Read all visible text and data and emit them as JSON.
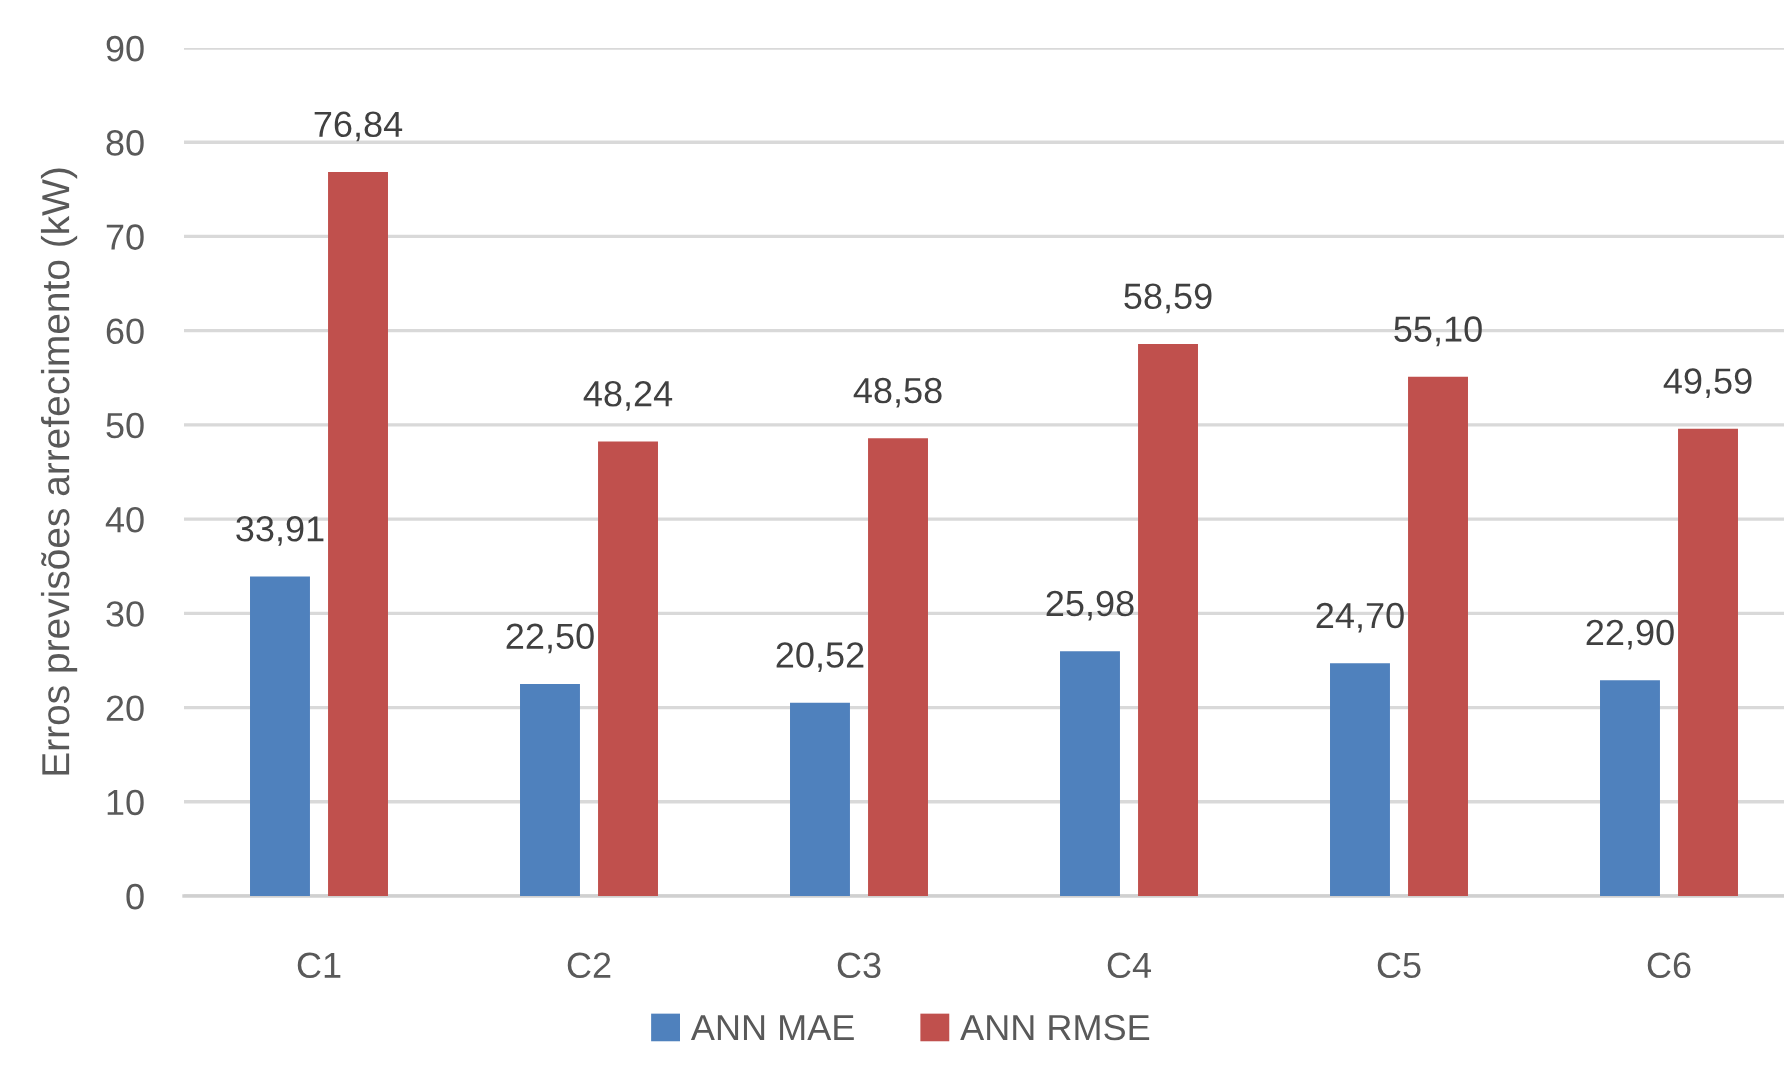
{
  "chart_data": {
    "type": "bar",
    "ylabel": "Erros previsões arrefecimento (kW)",
    "categories": [
      "C1",
      "C2",
      "C3",
      "C4",
      "C5",
      "C6"
    ],
    "series": [
      {
        "name": "ANN MAE",
        "color": "#4f81bd",
        "values": [
          33.91,
          22.5,
          20.52,
          25.98,
          24.7,
          22.9
        ],
        "value_labels": [
          "33,91",
          "22,50",
          "20,52",
          "25,98",
          "24,70",
          "22,90"
        ]
      },
      {
        "name": "ANN RMSE",
        "color": "#c0504d",
        "values": [
          76.84,
          48.24,
          48.58,
          58.59,
          55.1,
          49.59
        ],
        "value_labels": [
          "76,84",
          "48,24",
          "48,58",
          "58,59",
          "55,10",
          "49,59"
        ]
      }
    ],
    "ylim": [
      0,
      90
    ],
    "yticks": [
      0,
      10,
      20,
      30,
      40,
      50,
      60,
      70,
      80,
      90
    ],
    "grid": "y",
    "legend": "bottom"
  }
}
